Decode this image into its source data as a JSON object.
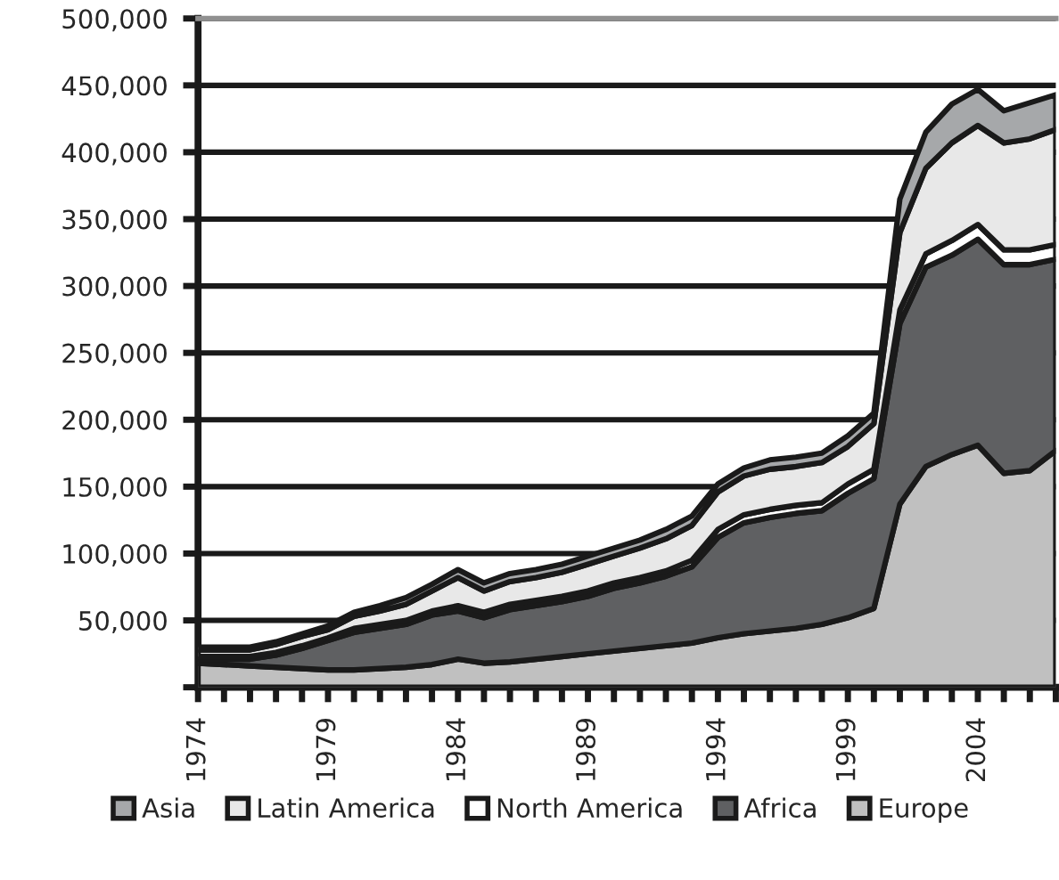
{
  "chart_data": {
    "type": "area",
    "stacked": true,
    "x": [
      1974,
      1975,
      1976,
      1977,
      1978,
      1979,
      1980,
      1981,
      1982,
      1983,
      1984,
      1985,
      1986,
      1987,
      1988,
      1989,
      1990,
      1991,
      1992,
      1993,
      1994,
      1995,
      1996,
      1997,
      1998,
      1999,
      2000,
      2001,
      2002,
      2003,
      2004,
      2005,
      2006,
      2007
    ],
    "series": [
      {
        "name": "Europe",
        "color": "#c0c0c0",
        "values": [
          18000,
          17000,
          16000,
          15000,
          14000,
          13000,
          13000,
          14000,
          15000,
          17000,
          21000,
          18000,
          19000,
          21000,
          23000,
          25000,
          27000,
          29000,
          31000,
          33000,
          37000,
          40000,
          42000,
          44000,
          47000,
          52000,
          59000,
          137000,
          165000,
          174000,
          181000,
          160000,
          162000,
          177000
        ]
      },
      {
        "name": "Africa",
        "color": "#5f6062",
        "values": [
          3000,
          4000,
          5000,
          9000,
          15000,
          22000,
          28000,
          30000,
          32000,
          37000,
          36000,
          34000,
          39000,
          40000,
          41000,
          43000,
          47000,
          49000,
          52000,
          57000,
          75000,
          83000,
          85000,
          86000,
          85000,
          93000,
          97000,
          135000,
          149000,
          149000,
          154000,
          156000,
          154000,
          143000
        ]
      },
      {
        "name": "North America",
        "color": "#ffffff",
        "values": [
          2000,
          2000,
          2000,
          2000,
          2000,
          2000,
          3000,
          3000,
          3000,
          3000,
          4000,
          4000,
          4000,
          4000,
          4000,
          4000,
          4000,
          4000,
          4000,
          5000,
          6000,
          6000,
          6000,
          6000,
          6000,
          7000,
          7000,
          10000,
          10000,
          11000,
          11000,
          11000,
          11000,
          11000
        ]
      },
      {
        "name": "Latin America",
        "color": "#e8e8e8",
        "values": [
          5000,
          5000,
          5000,
          6000,
          7000,
          6000,
          9000,
          10000,
          12000,
          15000,
          21000,
          16000,
          17000,
          17000,
          18000,
          20000,
          20000,
          22000,
          24000,
          26000,
          28000,
          29000,
          30000,
          29000,
          30000,
          28000,
          34000,
          58000,
          64000,
          73000,
          74000,
          80000,
          83000,
          86000
        ]
      },
      {
        "name": "Asia",
        "color": "#a6a8aa",
        "values": [
          2000,
          2000,
          2000,
          2000,
          2000,
          3000,
          3000,
          4000,
          5000,
          5000,
          6000,
          6000,
          6000,
          6000,
          6000,
          6000,
          6000,
          6000,
          7000,
          7000,
          6000,
          6000,
          7000,
          7000,
          7000,
          8000,
          8000,
          25000,
          27000,
          29000,
          27000,
          24000,
          27000,
          26000
        ]
      }
    ],
    "xlim": [
      1974,
      2007
    ],
    "xticks": [
      {
        "value": 1974,
        "label": "1974"
      },
      {
        "value": 1975,
        "label": null
      },
      {
        "value": 1976,
        "label": null
      },
      {
        "value": 1977,
        "label": null
      },
      {
        "value": 1978,
        "label": null
      },
      {
        "value": 1979,
        "label": "1979"
      },
      {
        "value": 1980,
        "label": null
      },
      {
        "value": 1981,
        "label": null
      },
      {
        "value": 1982,
        "label": null
      },
      {
        "value": 1983,
        "label": null
      },
      {
        "value": 1984,
        "label": "1984"
      },
      {
        "value": 1985,
        "label": null
      },
      {
        "value": 1986,
        "label": null
      },
      {
        "value": 1987,
        "label": null
      },
      {
        "value": 1988,
        "label": null
      },
      {
        "value": 1989,
        "label": "1989"
      },
      {
        "value": 1990,
        "label": null
      },
      {
        "value": 1991,
        "label": null
      },
      {
        "value": 1992,
        "label": null
      },
      {
        "value": 1993,
        "label": null
      },
      {
        "value": 1994,
        "label": "1994"
      },
      {
        "value": 1995,
        "label": null
      },
      {
        "value": 1996,
        "label": null
      },
      {
        "value": 1997,
        "label": null
      },
      {
        "value": 1998,
        "label": null
      },
      {
        "value": 1999,
        "label": "1999"
      },
      {
        "value": 2000,
        "label": null
      },
      {
        "value": 2001,
        "label": null
      },
      {
        "value": 2002,
        "label": null
      },
      {
        "value": 2003,
        "label": null
      },
      {
        "value": 2004,
        "label": "2004"
      },
      {
        "value": 2005,
        "label": null
      },
      {
        "value": 2006,
        "label": null
      },
      {
        "value": 2007,
        "label": null
      }
    ],
    "ylim": [
      0,
      500000
    ],
    "yticks": [
      {
        "value": 0,
        "label": null
      },
      {
        "value": 50000,
        "label": "50,000"
      },
      {
        "value": 100000,
        "label": "100,000"
      },
      {
        "value": 150000,
        "label": "150,000"
      },
      {
        "value": 200000,
        "label": "200,000"
      },
      {
        "value": 250000,
        "label": "250,000"
      },
      {
        "value": 300000,
        "label": "300,000"
      },
      {
        "value": 350000,
        "label": "350,000"
      },
      {
        "value": 400000,
        "label": "400,000"
      },
      {
        "value": 450000,
        "label": "450,000"
      },
      {
        "value": 500000,
        "label": "500,000"
      }
    ],
    "grid": "y",
    "legend": "bottom"
  }
}
